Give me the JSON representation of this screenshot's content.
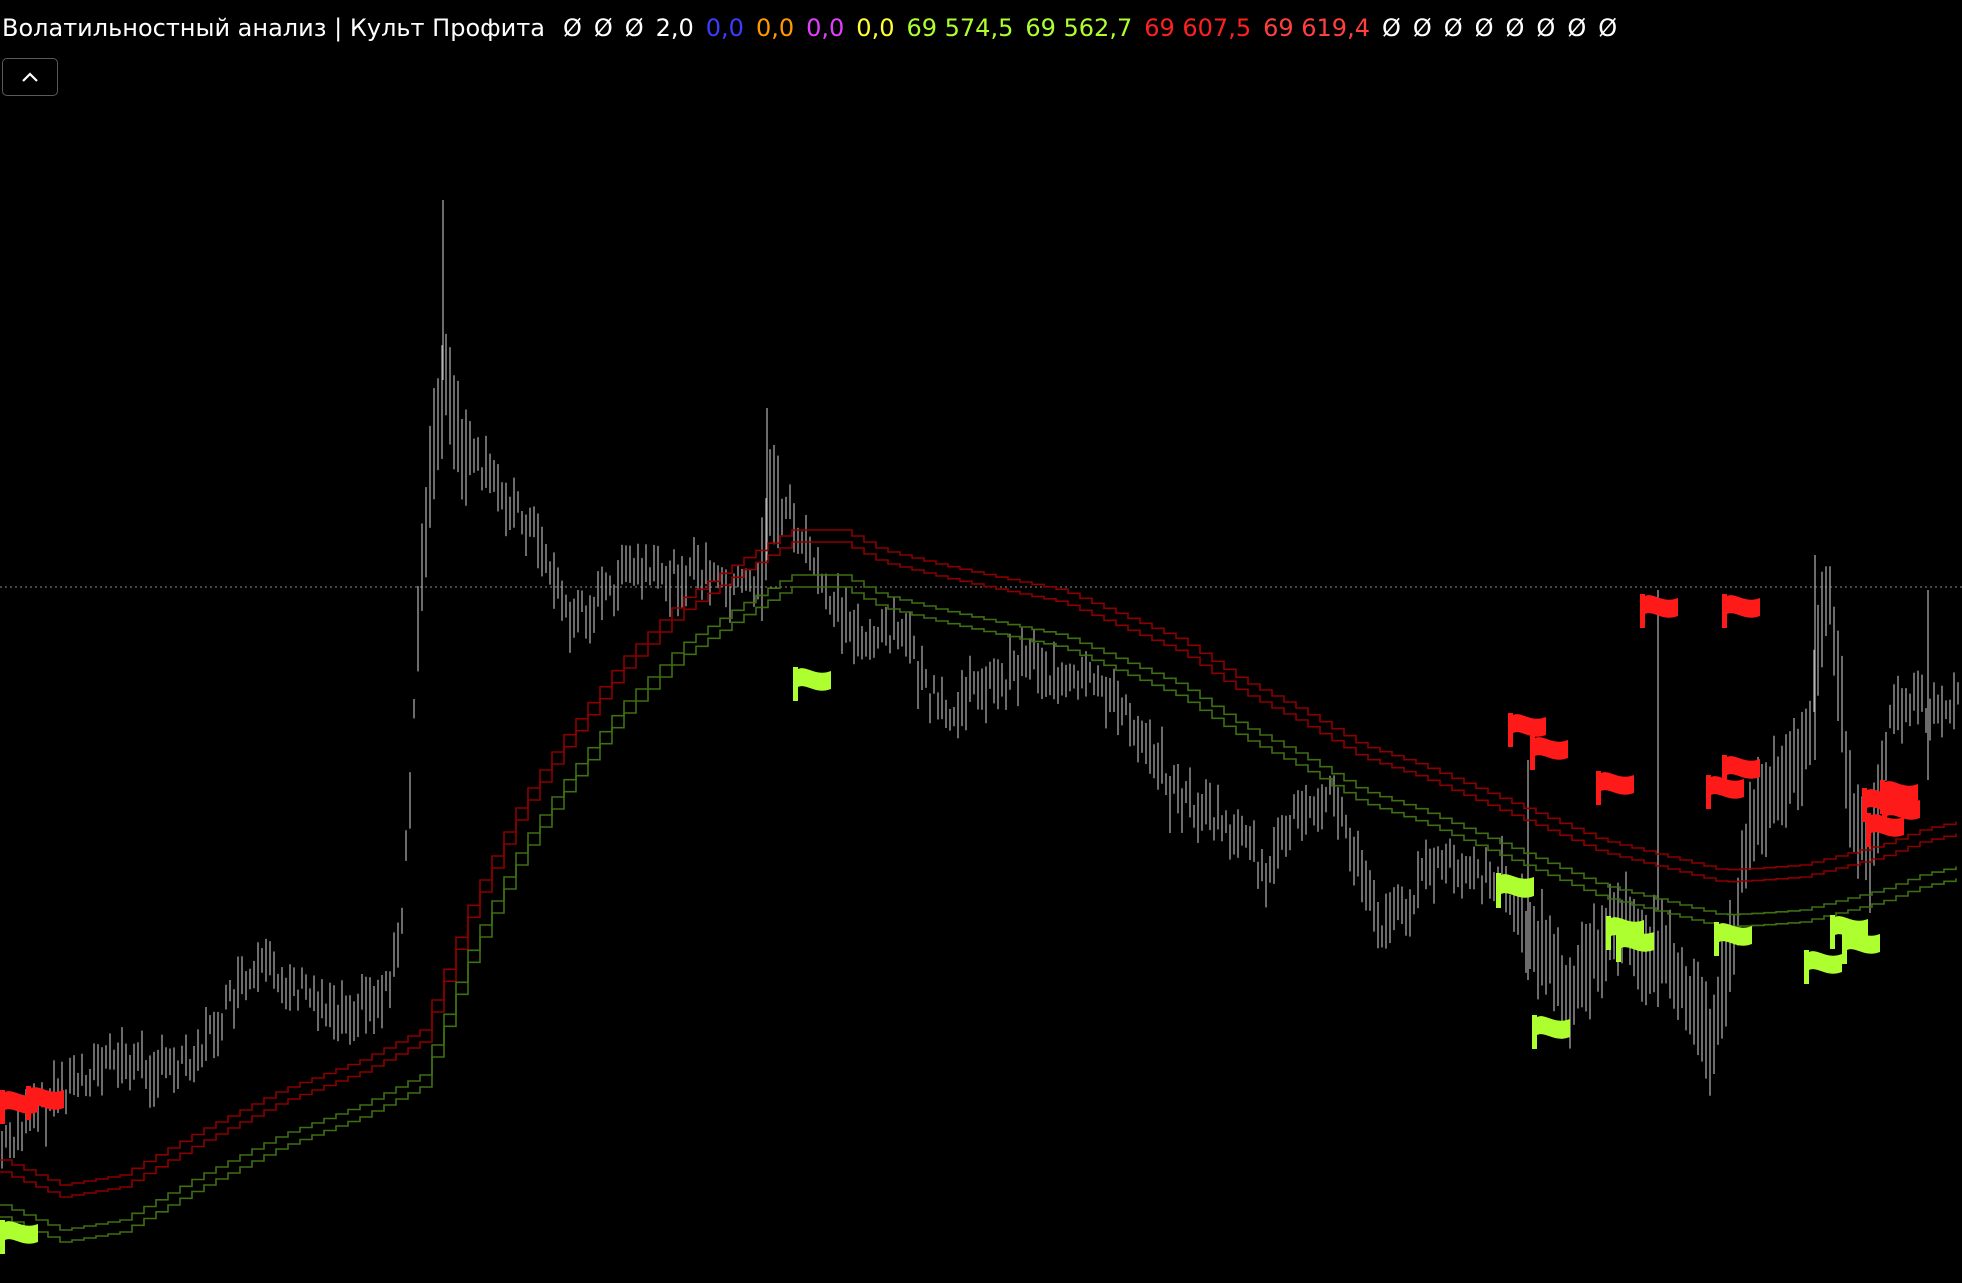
{
  "legend": {
    "title": "Волатильностный анализ | Культ Профита",
    "values": [
      {
        "text": "Ø",
        "color": "#ffffff"
      },
      {
        "text": "Ø",
        "color": "#ffffff"
      },
      {
        "text": "Ø",
        "color": "#ffffff"
      },
      {
        "text": "2,0",
        "color": "#ffffff"
      },
      {
        "text": "0,0",
        "color": "#3c3cff"
      },
      {
        "text": "0,0",
        "color": "#ff9900"
      },
      {
        "text": "0,0",
        "color": "#e040fb"
      },
      {
        "text": "0,0",
        "color": "#ffff33"
      },
      {
        "text": "69 574,5",
        "color": "#adff2f"
      },
      {
        "text": "69 562,7",
        "color": "#adff2f"
      },
      {
        "text": "69 607,5",
        "color": "#ff2020"
      },
      {
        "text": "69 619,4",
        "color": "#ff4040"
      },
      {
        "text": "Ø",
        "color": "#ffffff"
      },
      {
        "text": "Ø",
        "color": "#ffffff"
      },
      {
        "text": "Ø",
        "color": "#ffffff"
      },
      {
        "text": "Ø",
        "color": "#ffffff"
      },
      {
        "text": "Ø",
        "color": "#ffffff"
      },
      {
        "text": "Ø",
        "color": "#ffffff"
      },
      {
        "text": "Ø",
        "color": "#ffffff"
      },
      {
        "text": "Ø",
        "color": "#ffffff"
      }
    ]
  },
  "collapse_button": {
    "icon": "chevron-up-icon"
  },
  "colors": {
    "background": "#000000",
    "price_bars": "#b4b4b4",
    "upper_band": "#8b0000",
    "lower_band": "#3f6f12",
    "sell_flag": "#ff1a1a",
    "buy_flag": "#adff2f",
    "crosshair": "#8c8c8c"
  }
}
